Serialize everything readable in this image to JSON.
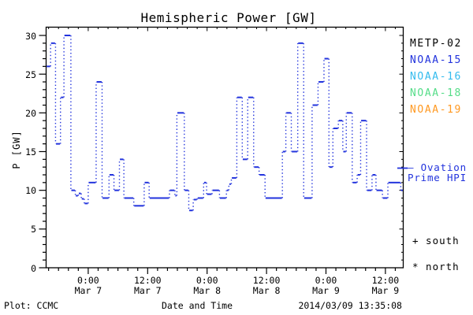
{
  "title": "Hemispheric Power [GW]",
  "footer": {
    "left": "Plot: CCMC",
    "center": "Date and Time",
    "right": "2014/03/09 13:35:08"
  },
  "legend": {
    "position": "right",
    "satellites": [
      {
        "label": "METP-02",
        "color": "#000000"
      },
      {
        "label": "NOAA-15",
        "color": "#2233dd"
      },
      {
        "label": "NOAA-16",
        "color": "#33bbee"
      },
      {
        "label": "NOAA-18",
        "color": "#55dd88"
      },
      {
        "label": "NOAA-19",
        "color": "#ff9922"
      }
    ],
    "ovation": {
      "line1": "— Ovation",
      "line2": "Prime HPI",
      "color": "#2233dd"
    },
    "marker_keys": [
      {
        "label": "+ south"
      },
      {
        "label": "* north"
      }
    ]
  },
  "colors": {
    "curve": "#2233dd",
    "axis": "#000000",
    "background": "#ffffff"
  },
  "chart_data": {
    "type": "line",
    "subtype": "step-histogram-dotted",
    "title": "Hemispheric Power [GW]",
    "xlabel": "Date and Time",
    "ylabel": "P [GW]",
    "ylim": [
      0,
      30
    ],
    "y_major_ticks": [
      0,
      5,
      10,
      15,
      20,
      25,
      30
    ],
    "y_minor_step": 1,
    "grid": false,
    "x_unit": "hours_from_plot_start",
    "x_hours_total": 72.1,
    "x_minor_step_hours": 2,
    "x_minor_first_hour": 0.5,
    "xticks": [
      {
        "t": 8.5,
        "time": "0:00",
        "date": "Mar 7"
      },
      {
        "t": 20.5,
        "time": "12:00",
        "date": "Mar 7"
      },
      {
        "t": 32.5,
        "time": "0:00",
        "date": "Mar 8"
      },
      {
        "t": 44.5,
        "time": "12:00",
        "date": "Mar 8"
      },
      {
        "t": 56.5,
        "time": "0:00",
        "date": "Mar 9"
      },
      {
        "t": 68.5,
        "time": "12:00",
        "date": "Mar 9"
      }
    ],
    "series": [
      {
        "name": "NOAA-15 Hemispheric Power Index",
        "color": "#2233dd",
        "steps_t0_t1_GW": [
          [
            0.0,
            0.9,
            26
          ],
          [
            0.9,
            1.9,
            29
          ],
          [
            1.9,
            2.9,
            16
          ],
          [
            2.9,
            3.6,
            22
          ],
          [
            3.6,
            5.0,
            30
          ],
          [
            5.0,
            5.9,
            10
          ],
          [
            5.9,
            6.5,
            9.3
          ],
          [
            6.5,
            7.1,
            9.6
          ],
          [
            7.1,
            7.7,
            8.9
          ],
          [
            7.7,
            8.5,
            8.3
          ],
          [
            8.5,
            10.1,
            11
          ],
          [
            10.1,
            11.3,
            24
          ],
          [
            11.3,
            12.7,
            9
          ],
          [
            12.7,
            13.7,
            12
          ],
          [
            13.7,
            14.8,
            10
          ],
          [
            14.8,
            15.7,
            14
          ],
          [
            15.7,
            17.7,
            9
          ],
          [
            17.7,
            19.8,
            8
          ],
          [
            19.8,
            20.8,
            11
          ],
          [
            20.8,
            24.9,
            9
          ],
          [
            24.9,
            26.0,
            10
          ],
          [
            26.0,
            26.4,
            9.3
          ],
          [
            26.4,
            27.9,
            20
          ],
          [
            27.9,
            28.8,
            10
          ],
          [
            28.8,
            29.7,
            7.4
          ],
          [
            29.7,
            30.5,
            8.8
          ],
          [
            30.5,
            31.8,
            9
          ],
          [
            31.8,
            32.4,
            11
          ],
          [
            32.4,
            33.5,
            9.5
          ],
          [
            33.5,
            35.0,
            10
          ],
          [
            35.0,
            36.4,
            9
          ],
          [
            36.4,
            36.9,
            10
          ],
          [
            36.9,
            37.4,
            10.8
          ],
          [
            37.4,
            38.5,
            11.6
          ],
          [
            38.5,
            39.6,
            22
          ],
          [
            39.6,
            40.7,
            14
          ],
          [
            40.7,
            41.9,
            22
          ],
          [
            41.9,
            43.0,
            13
          ],
          [
            43.0,
            44.2,
            12
          ],
          [
            44.2,
            47.7,
            9
          ],
          [
            47.7,
            48.4,
            15
          ],
          [
            48.4,
            49.5,
            20
          ],
          [
            49.5,
            50.8,
            15
          ],
          [
            50.8,
            52.0,
            29
          ],
          [
            52.0,
            53.7,
            9
          ],
          [
            53.7,
            54.9,
            21
          ],
          [
            54.9,
            56.1,
            24
          ],
          [
            56.1,
            57.1,
            27
          ],
          [
            57.1,
            57.9,
            13
          ],
          [
            57.9,
            59.0,
            18
          ],
          [
            59.0,
            59.9,
            19
          ],
          [
            59.9,
            60.6,
            15
          ],
          [
            60.6,
            61.8,
            20
          ],
          [
            61.8,
            62.8,
            11
          ],
          [
            62.8,
            63.5,
            12
          ],
          [
            63.5,
            64.7,
            19
          ],
          [
            64.7,
            65.8,
            10
          ],
          [
            65.8,
            66.6,
            12
          ],
          [
            66.6,
            67.9,
            10
          ],
          [
            67.9,
            69.0,
            9
          ],
          [
            69.0,
            71.6,
            11
          ],
          [
            71.6,
            72.1,
            10
          ]
        ]
      }
    ]
  }
}
